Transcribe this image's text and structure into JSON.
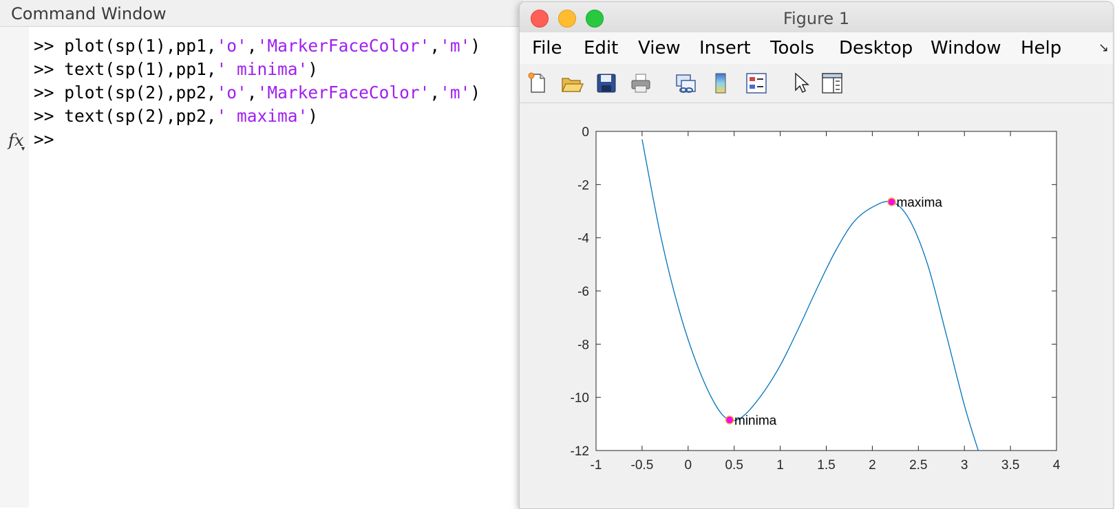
{
  "command_window": {
    "title": "Command Window",
    "lines": [
      {
        "prompt": ">> ",
        "pre": "plot(sp(1),pp1,",
        "s1": "'o'",
        "mid": ",",
        "s2": "'MarkerFaceColor'",
        "mid2": ",",
        "s3": "'m'",
        "post": ")"
      },
      {
        "prompt": ">> ",
        "pre": "text(sp(1),pp1,",
        "s1": "' minima'",
        "post": ")"
      },
      {
        "prompt": ">> ",
        "pre": "plot(sp(2),pp2,",
        "s1": "'o'",
        "mid": ",",
        "s2": "'MarkerFaceColor'",
        "mid2": ",",
        "s3": "'m'",
        "post": ")"
      },
      {
        "prompt": ">> ",
        "pre": "text(sp(2),pp2,",
        "s1": "' maxima'",
        "post": ")"
      }
    ],
    "current_prompt": ">>",
    "fx_label": "fx",
    "string_color": "#a020f0"
  },
  "figure": {
    "title": "Figure 1",
    "menu": [
      "File",
      "Edit",
      "View",
      "Insert",
      "Tools",
      "Desktop",
      "Window",
      "Help"
    ],
    "toolbar_icons": [
      "new-figure-icon",
      "open-folder-icon",
      "save-icon",
      "print-icon",
      "link-plot-icon",
      "colorbar-icon",
      "legend-icon",
      "pointer-icon",
      "property-inspector-icon"
    ]
  },
  "chart_data": {
    "type": "line",
    "title": "",
    "xlabel": "",
    "ylabel": "",
    "xlim": [
      -1,
      4
    ],
    "ylim": [
      -12,
      0
    ],
    "xticks": [
      "-1",
      "-0.5",
      "0",
      "0.5",
      "1",
      "1.5",
      "2",
      "2.5",
      "3",
      "3.5",
      "4"
    ],
    "yticks": [
      "0",
      "-2",
      "-4",
      "-6",
      "-8",
      "-10",
      "-12"
    ],
    "line_color": "#0072bd",
    "series": [
      {
        "x": [
          -0.5,
          -0.3,
          -0.1,
          0.1,
          0.3,
          0.45,
          0.6,
          0.8,
          1.0,
          1.2,
          1.4,
          1.6,
          1.8,
          2.0,
          2.21,
          2.4,
          2.6,
          2.8,
          3.0,
          3.15
        ],
        "y": [
          -0.3,
          -3.9,
          -6.7,
          -8.8,
          -10.3,
          -10.85,
          -10.7,
          -9.9,
          -8.8,
          -7.4,
          -5.9,
          -4.5,
          -3.4,
          -2.85,
          -2.65,
          -3.3,
          -5.0,
          -7.6,
          -10.3,
          -12.0
        ]
      }
    ],
    "markers": [
      {
        "x": 0.45,
        "y": -10.85,
        "label": "minima",
        "face_color": "#ff00ff",
        "edge_color": "#edb120"
      },
      {
        "x": 2.21,
        "y": -2.65,
        "label": "maxima",
        "face_color": "#ff00ff",
        "edge_color": "#edb120"
      }
    ],
    "grid": false
  }
}
